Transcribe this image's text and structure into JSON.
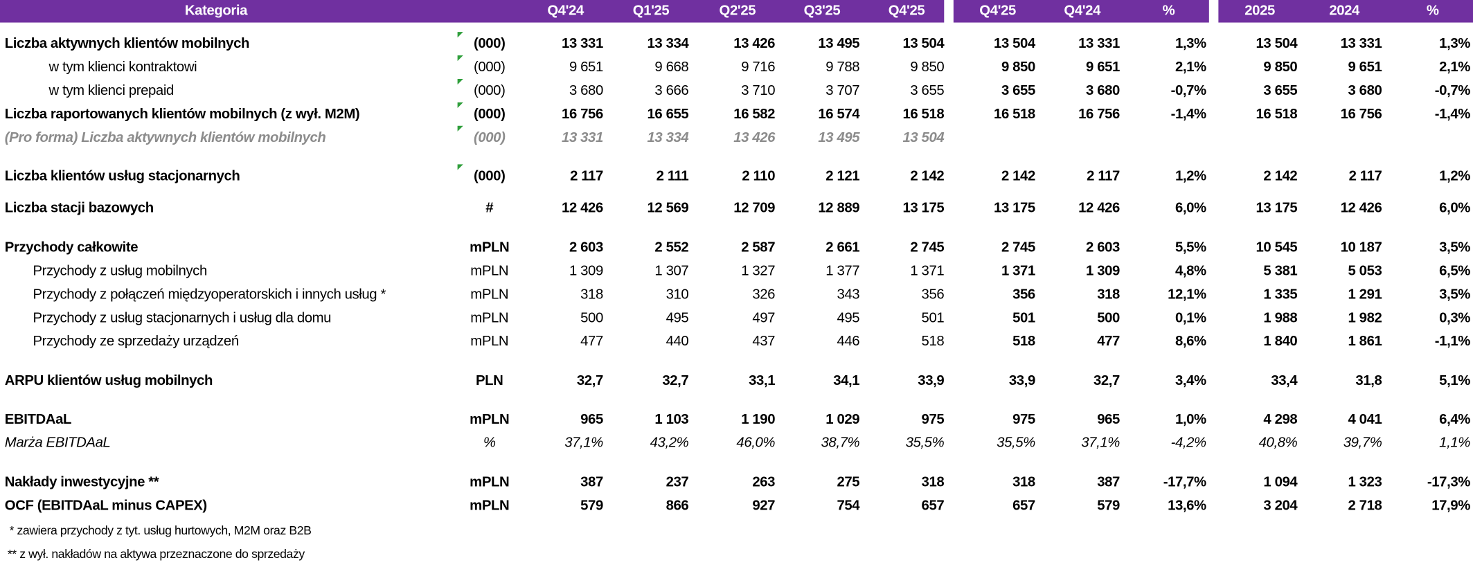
{
  "header": [
    "Kategoria",
    "Q4'24",
    "Q1'25",
    "Q2'25",
    "Q3'25",
    "Q4'25",
    "Q4'25",
    "Q4'24",
    "%",
    "2025",
    "2024",
    "%"
  ],
  "rows": [
    {
      "label": "Liczba aktywnych klientów mobilnych",
      "unit": "(000)",
      "values": [
        "13 331",
        "13 334",
        "13 426",
        "13 495",
        "13 504",
        "13 504",
        "13 331",
        "1,3%",
        "13 504",
        "13 331",
        "1,3%"
      ]
    },
    {
      "label": "w tym klienci kontraktowi",
      "unit": "(000)",
      "values": [
        "9 651",
        "9 668",
        "9 716",
        "9 788",
        "9 850",
        "9 850",
        "9 651",
        "2,1%",
        "9 850",
        "9 651",
        "2,1%"
      ]
    },
    {
      "label": "w tym klienci prepaid",
      "unit": "(000)",
      "values": [
        "3 680",
        "3 666",
        "3 710",
        "3 707",
        "3 655",
        "3 655",
        "3 680",
        "-0,7%",
        "3 655",
        "3 680",
        "-0,7%"
      ]
    },
    {
      "label": "Liczba raportowanych klientów mobilnych (z wył. M2M)",
      "unit": "(000)",
      "values": [
        "16 756",
        "16 655",
        "16 582",
        "16 574",
        "16 518",
        "16 518",
        "16 756",
        "-1,4%",
        "16 518",
        "16 756",
        "-1,4%"
      ]
    },
    {
      "label": "(Pro forma) Liczba aktywnych klientów mobilnych",
      "unit": "(000)",
      "values": [
        "13 331",
        "13 334",
        "13 426",
        "13 495",
        "13 504"
      ]
    },
    {
      "label": "Liczba klientów usług stacjonarnych",
      "unit": "(000)",
      "values": [
        "2 117",
        "2 111",
        "2 110",
        "2 121",
        "2 142",
        "2 142",
        "2 117",
        "1,2%",
        "2 142",
        "2 117",
        "1,2%"
      ]
    },
    {
      "label": "Liczba stacji bazowych",
      "unit": "#",
      "values": [
        "12 426",
        "12 569",
        "12 709",
        "12 889",
        "13 175",
        "13 175",
        "12 426",
        "6,0%",
        "13 175",
        "12 426",
        "6,0%"
      ]
    },
    {
      "label": "Przychody całkowite",
      "unit": "mPLN",
      "values": [
        "2 603",
        "2 552",
        "2 587",
        "2 661",
        "2 745",
        "2 745",
        "2 603",
        "5,5%",
        "10 545",
        "10 187",
        "3,5%"
      ]
    },
    {
      "label": "Przychody z usług mobilnych",
      "unit": "mPLN",
      "values": [
        "1 309",
        "1 307",
        "1 327",
        "1 377",
        "1 371",
        "1 371",
        "1 309",
        "4,8%",
        "5 381",
        "5 053",
        "6,5%"
      ]
    },
    {
      "label": "Przychody z połączeń międzyoperatorskich i innych usług *",
      "unit": "mPLN",
      "values": [
        "318",
        "310",
        "326",
        "343",
        "356",
        "356",
        "318",
        "12,1%",
        "1 335",
        "1 291",
        "3,5%"
      ]
    },
    {
      "label": "Przychody z usług stacjonarnych i usług dla domu",
      "unit": "mPLN",
      "values": [
        "500",
        "495",
        "497",
        "495",
        "501",
        "501",
        "500",
        "0,1%",
        "1 988",
        "1 982",
        "0,3%"
      ]
    },
    {
      "label": "Przychody ze sprzedaży urządzeń",
      "unit": "mPLN",
      "values": [
        "477",
        "440",
        "437",
        "446",
        "518",
        "518",
        "477",
        "8,6%",
        "1 840",
        "1 861",
        "-1,1%"
      ]
    },
    {
      "label": "ARPU klientów usług mobilnych",
      "unit": "PLN",
      "values": [
        "32,7",
        "32,7",
        "33,1",
        "34,1",
        "33,9",
        "33,9",
        "32,7",
        "3,4%",
        "33,4",
        "31,8",
        "5,1%"
      ]
    },
    {
      "label": "EBITDAaL",
      "unit": "mPLN",
      "values": [
        "965",
        "1 103",
        "1 190",
        "1 029",
        "975",
        "975",
        "965",
        "1,0%",
        "4 298",
        "4 041",
        "6,4%"
      ]
    },
    {
      "label": "Marża EBITDAaL",
      "unit": "%",
      "values": [
        "37,1%",
        "43,2%",
        "46,0%",
        "38,7%",
        "35,5%",
        "35,5%",
        "37,1%",
        "-4,2%",
        "40,8%",
        "39,7%",
        "1,1%"
      ]
    },
    {
      "label": "Nakłady inwestycyjne **",
      "unit": "mPLN",
      "values": [
        "387",
        "237",
        "263",
        "275",
        "318",
        "318",
        "387",
        "-17,7%",
        "1 094",
        "1 323",
        "-17,3%"
      ]
    },
    {
      "label": "OCF (EBITDAaL minus CAPEX)",
      "unit": "mPLN",
      "values": [
        "579",
        "866",
        "927",
        "754",
        "657",
        "657",
        "579",
        "13,6%",
        "3 204",
        "2 718",
        "17,9%"
      ]
    }
  ],
  "footnotes": [
    "* zawiera przychody z tyt. usług hurtowych, M2M oraz B2B",
    "** z wył. nakładów na aktywa przeznaczone do sprzedaży"
  ]
}
